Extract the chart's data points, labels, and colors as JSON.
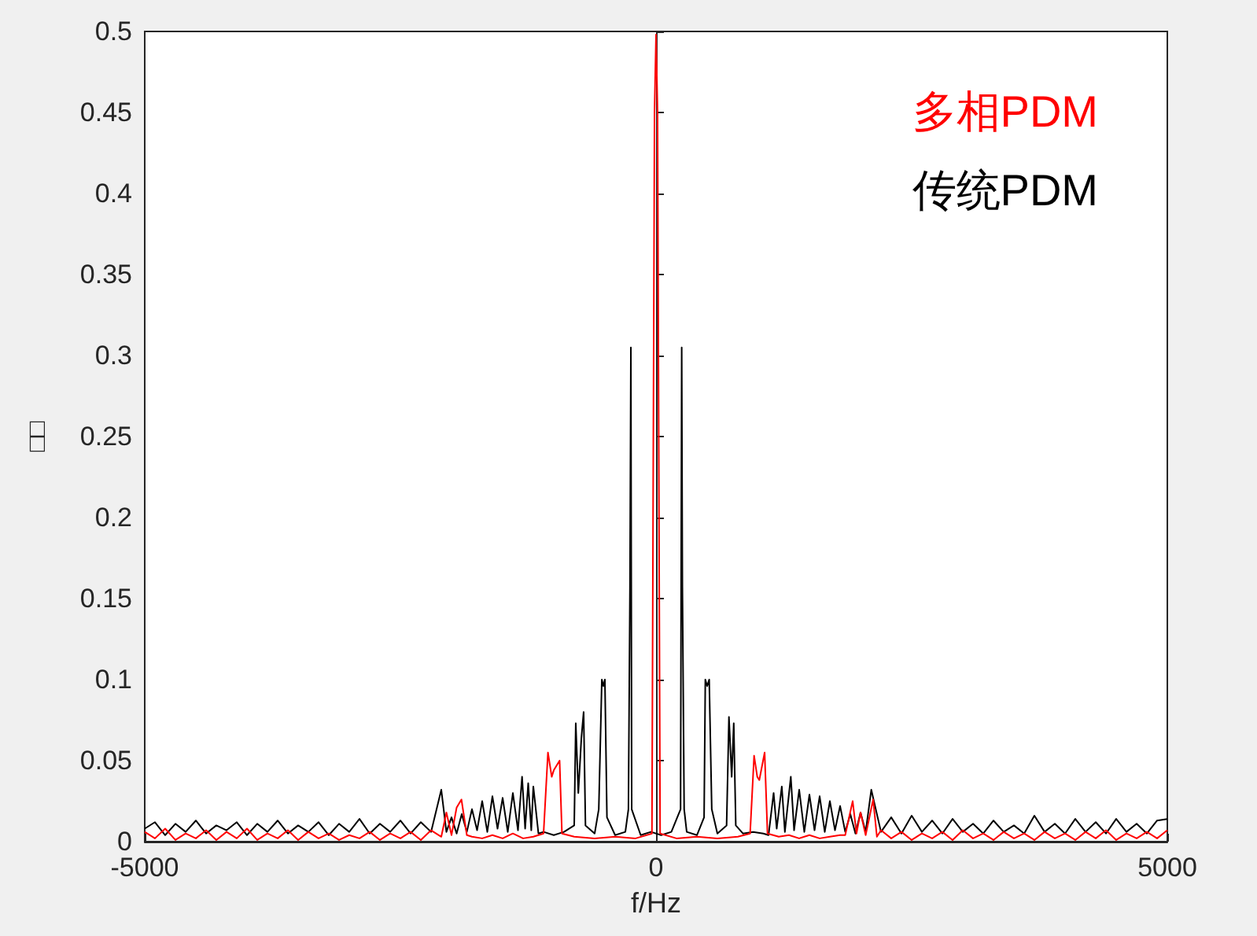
{
  "chart_data": {
    "type": "line",
    "xlabel": "f/Hz",
    "ylabel": "□□",
    "xlim": [
      -5000,
      5000
    ],
    "xticks": [
      -5000,
      0,
      5000
    ],
    "ylim": [
      0,
      0.5
    ],
    "yticks": [
      0,
      0.05,
      0.1,
      0.15,
      0.2,
      0.25,
      0.3,
      0.35,
      0.4,
      0.45,
      0.5
    ],
    "legend": "top right",
    "marker": "none",
    "line_style": "solid",
    "series": [
      {
        "name": "传统PDM",
        "color": "#000000",
        "x": [
          -5000,
          -4900,
          -4800,
          -4700,
          -4600,
          -4500,
          -4400,
          -4300,
          -4200,
          -4100,
          -4000,
          -3900,
          -3800,
          -3700,
          -3600,
          -3500,
          -3400,
          -3300,
          -3200,
          -3100,
          -3000,
          -2900,
          -2800,
          -2700,
          -2600,
          -2500,
          -2400,
          -2300,
          -2200,
          -2100,
          -2050,
          -2000,
          -1950,
          -1900,
          -1850,
          -1800,
          -1750,
          -1700,
          -1650,
          -1600,
          -1550,
          -1500,
          -1450,
          -1400,
          -1350,
          -1310,
          -1280,
          -1250,
          -1220,
          -1200,
          -1150,
          -1100,
          -1000,
          -900,
          -800,
          -785,
          -760,
          -730,
          -708,
          -690,
          -600,
          -560,
          -530,
          -515,
          -500,
          -480,
          -400,
          -300,
          -270,
          -255,
          -246,
          -238,
          -150,
          -50,
          50,
          150,
          240,
          251,
          258,
          275,
          300,
          400,
          470,
          482,
          500,
          520,
          545,
          600,
          690,
          713,
          740,
          760,
          780,
          850,
          950,
          1050,
          1100,
          1150,
          1180,
          1230,
          1260,
          1318,
          1350,
          1400,
          1450,
          1500,
          1550,
          1600,
          1650,
          1700,
          1750,
          1800,
          1850,
          1900,
          1950,
          2000,
          2050,
          2105,
          2200,
          2300,
          2400,
          2500,
          2600,
          2700,
          2800,
          2900,
          3000,
          3100,
          3200,
          3300,
          3400,
          3500,
          3600,
          3700,
          3800,
          3900,
          4000,
          4100,
          4200,
          4300,
          4400,
          4500,
          4600,
          4700,
          4800,
          4900,
          5000
        ],
        "values": [
          0.008,
          0.012,
          0.004,
          0.011,
          0.006,
          0.013,
          0.005,
          0.01,
          0.007,
          0.012,
          0.004,
          0.011,
          0.006,
          0.013,
          0.005,
          0.01,
          0.006,
          0.012,
          0.004,
          0.011,
          0.006,
          0.014,
          0.005,
          0.011,
          0.006,
          0.013,
          0.005,
          0.012,
          0.006,
          0.032,
          0.006,
          0.015,
          0.005,
          0.017,
          0.006,
          0.02,
          0.007,
          0.025,
          0.006,
          0.028,
          0.008,
          0.027,
          0.006,
          0.03,
          0.007,
          0.04,
          0.008,
          0.036,
          0.007,
          0.034,
          0.005,
          0.006,
          0.004,
          0.006,
          0.01,
          0.073,
          0.03,
          0.064,
          0.08,
          0.01,
          0.005,
          0.02,
          0.1,
          0.096,
          0.1,
          0.015,
          0.004,
          0.006,
          0.02,
          0.157,
          0.305,
          0.02,
          0.004,
          0.006,
          0.004,
          0.006,
          0.02,
          0.305,
          0.157,
          0.02,
          0.006,
          0.004,
          0.015,
          0.1,
          0.096,
          0.1,
          0.02,
          0.005,
          0.01,
          0.077,
          0.04,
          0.073,
          0.01,
          0.005,
          0.006,
          0.005,
          0.004,
          0.03,
          0.008,
          0.034,
          0.006,
          0.04,
          0.007,
          0.032,
          0.006,
          0.029,
          0.007,
          0.028,
          0.006,
          0.025,
          0.007,
          0.022,
          0.006,
          0.017,
          0.005,
          0.018,
          0.006,
          0.032,
          0.006,
          0.015,
          0.005,
          0.016,
          0.006,
          0.013,
          0.005,
          0.014,
          0.006,
          0.011,
          0.005,
          0.013,
          0.006,
          0.01,
          0.005,
          0.016,
          0.006,
          0.011,
          0.005,
          0.014,
          0.006,
          0.012,
          0.005,
          0.014,
          0.006,
          0.011,
          0.005,
          0.013,
          0.014
        ]
      },
      {
        "name": "多相PDM",
        "color": "#ff0000",
        "x": [
          -5000,
          -4900,
          -4800,
          -4700,
          -4600,
          -4500,
          -4400,
          -4300,
          -4200,
          -4100,
          -4000,
          -3900,
          -3800,
          -3700,
          -3600,
          -3500,
          -3400,
          -3300,
          -3200,
          -3100,
          -3000,
          -2900,
          -2800,
          -2700,
          -2600,
          -2500,
          -2400,
          -2300,
          -2200,
          -2100,
          -2050,
          -2000,
          -1950,
          -1903,
          -1850,
          -1800,
          -1700,
          -1600,
          -1500,
          -1400,
          -1300,
          -1200,
          -1100,
          -1057,
          -1020,
          -1000,
          -943,
          -920,
          -800,
          -600,
          -400,
          -200,
          -40,
          -15,
          0,
          15,
          40,
          200,
          400,
          600,
          800,
          920,
          959,
          990,
          1010,
          1062,
          1090,
          1200,
          1300,
          1400,
          1500,
          1600,
          1700,
          1800,
          1850,
          1923,
          1960,
          2000,
          2050,
          2123,
          2160,
          2200,
          2300,
          2400,
          2500,
          2600,
          2700,
          2800,
          2900,
          3000,
          3100,
          3200,
          3300,
          3400,
          3500,
          3600,
          3700,
          3800,
          3900,
          4000,
          4100,
          4200,
          4300,
          4400,
          4500,
          4600,
          4700,
          4800,
          4900,
          5000
        ],
        "values": [
          0.006,
          0.002,
          0.008,
          0.001,
          0.005,
          0.002,
          0.007,
          0.001,
          0.006,
          0.002,
          0.008,
          0.001,
          0.005,
          0.002,
          0.007,
          0.001,
          0.006,
          0.002,
          0.005,
          0.001,
          0.004,
          0.002,
          0.006,
          0.001,
          0.005,
          0.002,
          0.006,
          0.001,
          0.007,
          0.003,
          0.018,
          0.004,
          0.021,
          0.026,
          0.004,
          0.003,
          0.002,
          0.004,
          0.002,
          0.005,
          0.002,
          0.003,
          0.005,
          0.055,
          0.04,
          0.044,
          0.05,
          0.005,
          0.003,
          0.002,
          0.003,
          0.002,
          0.005,
          0.45,
          0.498,
          0.45,
          0.005,
          0.002,
          0.003,
          0.002,
          0.003,
          0.005,
          0.053,
          0.04,
          0.038,
          0.055,
          0.005,
          0.003,
          0.004,
          0.002,
          0.004,
          0.002,
          0.003,
          0.004,
          0.004,
          0.025,
          0.005,
          0.018,
          0.004,
          0.026,
          0.003,
          0.007,
          0.002,
          0.006,
          0.001,
          0.005,
          0.002,
          0.006,
          0.001,
          0.007,
          0.002,
          0.005,
          0.001,
          0.006,
          0.002,
          0.005,
          0.001,
          0.006,
          0.002,
          0.005,
          0.001,
          0.006,
          0.002,
          0.007,
          0.001,
          0.005,
          0.002,
          0.006,
          0.002,
          0.007
        ]
      }
    ]
  }
}
